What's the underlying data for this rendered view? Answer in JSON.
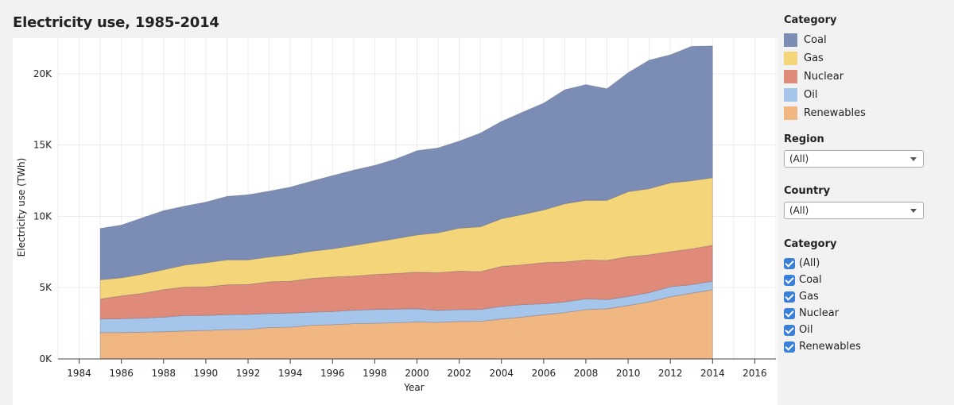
{
  "title": "Electricity use, 1985-2014",
  "legend": {
    "heading": "Category",
    "items": [
      {
        "label": "Coal",
        "color": "#7b8db5"
      },
      {
        "label": "Gas",
        "color": "#f5d57a"
      },
      {
        "label": "Nuclear",
        "color": "#e08a7a"
      },
      {
        "label": "Oil",
        "color": "#a6c5ea"
      },
      {
        "label": "Renewables",
        "color": "#f0b783"
      }
    ]
  },
  "filters": {
    "region": {
      "label": "Region",
      "value": "(All)"
    },
    "country": {
      "label": "Country",
      "value": "(All)"
    },
    "category": {
      "label": "Category",
      "options": [
        "(All)",
        "Coal",
        "Gas",
        "Nuclear",
        "Oil",
        "Renewables"
      ]
    }
  },
  "chart_data": {
    "type": "area",
    "stacked": true,
    "title": "Electricity use, 1985-2014",
    "xlabel": "Year",
    "ylabel": "Electricity use (TWh)",
    "xlim": [
      1983,
      2017
    ],
    "ylim": [
      0,
      22500
    ],
    "x_ticks": [
      1984,
      1986,
      1988,
      1990,
      1992,
      1994,
      1996,
      1998,
      2000,
      2002,
      2004,
      2006,
      2008,
      2010,
      2012,
      2014,
      2016
    ],
    "y_ticks": [
      {
        "value": 0,
        "label": "0K"
      },
      {
        "value": 5000,
        "label": "5K"
      },
      {
        "value": 10000,
        "label": "10K"
      },
      {
        "value": 15000,
        "label": "15K"
      },
      {
        "value": 20000,
        "label": "20K"
      }
    ],
    "grid": true,
    "x": [
      1985,
      1986,
      1987,
      1988,
      1989,
      1990,
      1991,
      1992,
      1993,
      1994,
      1995,
      1996,
      1997,
      1998,
      1999,
      2000,
      2001,
      2002,
      2003,
      2004,
      2005,
      2006,
      2007,
      2008,
      2009,
      2010,
      2011,
      2012,
      2013,
      2014
    ],
    "series": [
      {
        "name": "Renewables",
        "color": "#f0b783",
        "values": [
          1850,
          1850,
          1870,
          1910,
          1960,
          2000,
          2060,
          2080,
          2200,
          2230,
          2360,
          2400,
          2470,
          2500,
          2540,
          2600,
          2560,
          2630,
          2640,
          2800,
          2940,
          3100,
          3250,
          3460,
          3520,
          3750,
          4000,
          4360,
          4610,
          4850
        ]
      },
      {
        "name": "Oil",
        "color": "#a6c5ea",
        "values": [
          950,
          970,
          990,
          1020,
          1080,
          1050,
          1050,
          1040,
          990,
          990,
          920,
          920,
          950,
          970,
          950,
          920,
          850,
          830,
          830,
          880,
          870,
          770,
          750,
          750,
          640,
          630,
          650,
          700,
          600,
          600
        ]
      },
      {
        "name": "Nuclear",
        "color": "#e08a7a",
        "values": [
          1400,
          1600,
          1740,
          1930,
          2000,
          2000,
          2090,
          2100,
          2220,
          2230,
          2360,
          2420,
          2390,
          2450,
          2500,
          2560,
          2640,
          2700,
          2650,
          2810,
          2790,
          2880,
          2800,
          2730,
          2750,
          2790,
          2650,
          2460,
          2510,
          2520
        ]
      },
      {
        "name": "Gas",
        "color": "#f5d57a",
        "values": [
          1350,
          1270,
          1350,
          1400,
          1550,
          1700,
          1750,
          1730,
          1740,
          1870,
          1920,
          1980,
          2150,
          2280,
          2450,
          2620,
          2800,
          3010,
          3150,
          3340,
          3530,
          3700,
          4080,
          4190,
          4210,
          4560,
          4640,
          4830,
          4780,
          4740
        ]
      },
      {
        "name": "Coal",
        "color": "#7b8db5",
        "values": [
          3600,
          3700,
          3950,
          4140,
          4130,
          4250,
          4450,
          4560,
          4620,
          4730,
          4900,
          5140,
          5280,
          5380,
          5580,
          5900,
          5950,
          6100,
          6570,
          6820,
          7180,
          7490,
          8000,
          8110,
          7830,
          8340,
          9010,
          8980,
          9420,
          9240
        ]
      }
    ]
  }
}
